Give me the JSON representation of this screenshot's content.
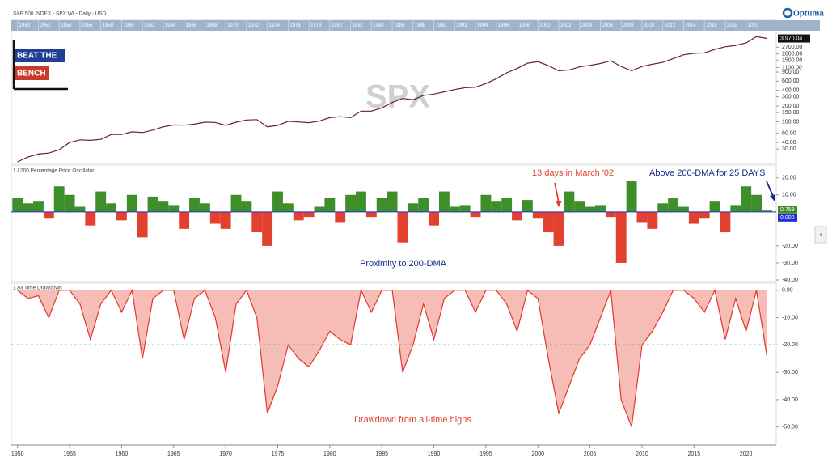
{
  "branding": {
    "logo_top": "BEAT THE",
    "logo_bottom": "BENCH",
    "vendor": "Optuma",
    "watermark": "SPX"
  },
  "chart_data": [
    {
      "type": "line",
      "title": "S&P 500 INDEX - SPX:WI - Daily - USD",
      "log_scale": true,
      "x": [
        1950,
        1951,
        1952,
        1953,
        1954,
        1955,
        1956,
        1957,
        1958,
        1959,
        1960,
        1961,
        1962,
        1963,
        1964,
        1965,
        1966,
        1967,
        1968,
        1969,
        1970,
        1971,
        1972,
        1973,
        1974,
        1975,
        1976,
        1977,
        1978,
        1979,
        1980,
        1981,
        1982,
        1983,
        1984,
        1985,
        1986,
        1987,
        1988,
        1989,
        1990,
        1991,
        1992,
        1993,
        1994,
        1995,
        1996,
        1997,
        1998,
        1999,
        2000,
        2001,
        2002,
        2003,
        2004,
        2005,
        2006,
        2007,
        2008,
        2009,
        2010,
        2011,
        2012,
        2013,
        2014,
        2015,
        2016,
        2017,
        2018,
        2019,
        2020,
        2021,
        2022
      ],
      "series": [
        {
          "name": "SPX",
          "color": "#6b1f2a",
          "values": [
            17,
            21,
            24,
            25,
            29,
            40,
            45,
            44,
            46,
            57,
            57,
            64,
            62,
            69,
            80,
            87,
            86,
            90,
            98,
            97,
            85,
            98,
            108,
            110,
            80,
            85,
            102,
            99,
            96,
            103,
            120,
            125,
            120,
            160,
            160,
            185,
            235,
            280,
            265,
            320,
            340,
            375,
            415,
            450,
            460,
            540,
            670,
            870,
            1050,
            1330,
            1420,
            1200,
            950,
            990,
            1130,
            1210,
            1310,
            1480,
            1150,
            950,
            1150,
            1270,
            1380,
            1630,
            1930,
            2060,
            2100,
            2450,
            2750,
            2920,
            3270,
            4300,
            3970.04
          ],
          "value_labels": [
            null,
            null,
            null,
            null,
            null,
            null,
            null,
            null,
            null,
            null,
            null,
            null,
            null,
            null,
            null,
            null,
            null,
            null,
            null,
            null,
            null,
            null,
            null,
            null,
            null,
            null,
            null,
            null,
            null,
            null,
            null,
            null,
            null,
            null,
            null,
            null,
            null,
            null,
            null,
            null,
            null,
            null,
            null,
            null,
            null,
            null,
            null,
            null,
            null,
            null,
            null,
            null,
            null,
            null,
            null,
            null,
            null,
            null,
            null,
            null,
            null,
            null,
            null,
            null,
            null,
            null,
            null,
            null,
            null,
            null,
            null,
            null,
            "3,970.04"
          ]
        }
      ],
      "xlim": [
        1949.4,
        2022.9
      ],
      "xticks": [
        1950,
        1952,
        1954,
        1956,
        1958,
        1960,
        1962,
        1964,
        1966,
        1968,
        1970,
        1972,
        1974,
        1976,
        1978,
        1980,
        1982,
        1984,
        1986,
        1988,
        1990,
        1992,
        1994,
        1996,
        1998,
        2000,
        2002,
        2004,
        2006,
        2008,
        2010,
        2012,
        2014,
        2016,
        2018,
        2020
      ],
      "ylim": [
        17,
        5200
      ],
      "yticks": [
        {
          "value": 2700,
          "label": "2700.00"
        },
        {
          "value": 2000,
          "label": "2000.00"
        },
        {
          "value": 1500,
          "label": "1500.00"
        },
        {
          "value": 1100,
          "label": "1100.00"
        },
        {
          "value": 900,
          "label": "900.00"
        },
        {
          "value": 600,
          "label": "600.00"
        },
        {
          "value": 400,
          "label": "400.00"
        },
        {
          "value": 300,
          "label": "300.00"
        },
        {
          "value": 200,
          "label": "200.00"
        },
        {
          "value": 150,
          "label": "150.00"
        },
        {
          "value": 100,
          "label": "100.00"
        },
        {
          "value": 60,
          "label": "60.00"
        },
        {
          "value": 40,
          "label": "40.00"
        },
        {
          "value": 30,
          "label": "30.00"
        }
      ]
    },
    {
      "type": "bar",
      "title": "1 / 200 Percentage Price Oscillator",
      "x": [
        1950,
        1951,
        1952,
        1953,
        1954,
        1955,
        1956,
        1957,
        1958,
        1959,
        1960,
        1961,
        1962,
        1963,
        1964,
        1965,
        1966,
        1967,
        1968,
        1969,
        1970,
        1971,
        1972,
        1973,
        1974,
        1975,
        1976,
        1977,
        1978,
        1979,
        1980,
        1981,
        1982,
        1983,
        1984,
        1985,
        1986,
        1987,
        1988,
        1989,
        1990,
        1991,
        1992,
        1993,
        1994,
        1995,
        1996,
        1997,
        1998,
        1999,
        2000,
        2001,
        2002,
        2003,
        2004,
        2005,
        2006,
        2007,
        2008,
        2009,
        2010,
        2011,
        2012,
        2013,
        2014,
        2015,
        2016,
        2017,
        2018,
        2019,
        2020,
        2021,
        2022
      ],
      "positive_color": "#3e8e2a",
      "negative_color": "#e3412f",
      "values": [
        8,
        5,
        6,
        -4,
        15,
        10,
        3,
        -8,
        12,
        5,
        -5,
        10,
        -15,
        9,
        6,
        4,
        -10,
        8,
        5,
        -7,
        -10,
        10,
        6,
        -12,
        -20,
        12,
        5,
        -5,
        -3,
        3,
        8,
        -6,
        10,
        12,
        -3,
        8,
        12,
        -18,
        5,
        8,
        -8,
        12,
        3,
        4,
        -3,
        10,
        6,
        8,
        -5,
        7,
        -4,
        -12,
        -20,
        12,
        6,
        3,
        4,
        -3,
        -30,
        18,
        -6,
        -10,
        5,
        8,
        3,
        -7,
        -4,
        6,
        -12,
        4,
        15,
        10,
        0.759
      ],
      "value_labels": [
        null,
        null,
        null,
        null,
        null,
        null,
        null,
        null,
        null,
        null,
        null,
        null,
        null,
        null,
        null,
        null,
        null,
        null,
        null,
        null,
        null,
        null,
        null,
        null,
        null,
        null,
        null,
        null,
        null,
        null,
        null,
        null,
        null,
        null,
        null,
        null,
        null,
        null,
        null,
        null,
        null,
        null,
        null,
        null,
        null,
        null,
        null,
        null,
        null,
        null,
        null,
        null,
        null,
        null,
        null,
        null,
        null,
        null,
        null,
        null,
        null,
        null,
        null,
        null,
        null,
        null,
        null,
        null,
        null,
        null,
        null,
        null,
        "0.759"
      ],
      "reference_line": {
        "value": 0,
        "label": "0.000",
        "color": "#1f2fd6"
      },
      "xlim": [
        1949.4,
        2022.9
      ],
      "ylim": [
        -40,
        27
      ],
      "yticks": [
        {
          "value": 20,
          "label": "20.00"
        },
        {
          "value": 10,
          "label": "10.00"
        },
        {
          "value": -20,
          "label": "-20.00"
        },
        {
          "value": -30,
          "label": "-30.00"
        },
        {
          "value": -40,
          "label": "-40.00"
        }
      ],
      "annotations": [
        {
          "text": "13 days in March '02",
          "color": "#e3412f"
        },
        {
          "text": "Above 200-DMA for 25 DAYS",
          "color": "#1b2a8a"
        },
        {
          "text": "Proximity to 200-DMA",
          "color": "#1b2a8a"
        }
      ]
    },
    {
      "type": "area",
      "title": "1 All Time Drawdown",
      "x": [
        1950,
        1951,
        1952,
        1953,
        1954,
        1955,
        1956,
        1957,
        1958,
        1959,
        1960,
        1961,
        1962,
        1963,
        1964,
        1965,
        1966,
        1967,
        1968,
        1969,
        1970,
        1971,
        1972,
        1973,
        1974,
        1975,
        1976,
        1977,
        1978,
        1979,
        1980,
        1981,
        1982,
        1983,
        1984,
        1985,
        1986,
        1987,
        1988,
        1989,
        1990,
        1991,
        1992,
        1993,
        1994,
        1995,
        1996,
        1997,
        1998,
        1999,
        2000,
        2001,
        2002,
        2003,
        2004,
        2005,
        2006,
        2007,
        2008,
        2009,
        2010,
        2011,
        2012,
        2013,
        2014,
        2015,
        2016,
        2017,
        2018,
        2019,
        2020,
        2021,
        2022
      ],
      "color": "#e2372c",
      "fill": "#f6bcb6",
      "values": [
        0,
        -3,
        -2,
        -10,
        0,
        0,
        -5,
        -18,
        -5,
        0,
        -8,
        0,
        -25,
        -3,
        0,
        0,
        -18,
        -3,
        0,
        -10,
        -30,
        -5,
        0,
        -10,
        -45,
        -35,
        -20,
        -25,
        -28,
        -22,
        -15,
        -18,
        -20,
        0,
        -8,
        0,
        0,
        -30,
        -20,
        -5,
        -18,
        -3,
        0,
        0,
        -8,
        0,
        0,
        -5,
        -15,
        0,
        -3,
        -25,
        -45,
        -35,
        -25,
        -20,
        -10,
        0,
        -40,
        -50,
        -20,
        -15,
        -8,
        0,
        0,
        -3,
        -8,
        0,
        -18,
        -3,
        -15,
        0,
        -24
      ],
      "reference_line": {
        "value": -20,
        "color": "#3c9a3c"
      },
      "xlim": [
        1949.4,
        2022.9
      ],
      "ylim": [
        -56,
        2
      ],
      "xticks": [
        1950,
        1955,
        1960,
        1965,
        1970,
        1975,
        1980,
        1985,
        1990,
        1995,
        2000,
        2005,
        2010,
        2015,
        2020
      ],
      "yticks": [
        {
          "value": 0,
          "label": "0.00"
        },
        {
          "value": -10,
          "label": "-10.00"
        },
        {
          "value": -20,
          "label": "-20.00"
        },
        {
          "value": -30,
          "label": "-30.00"
        },
        {
          "value": -40,
          "label": "-40.00"
        },
        {
          "value": -50,
          "label": "-50.00"
        }
      ],
      "annotations": [
        {
          "text": "Drawdown from all-time highs",
          "color": "#e3412f"
        }
      ]
    }
  ]
}
